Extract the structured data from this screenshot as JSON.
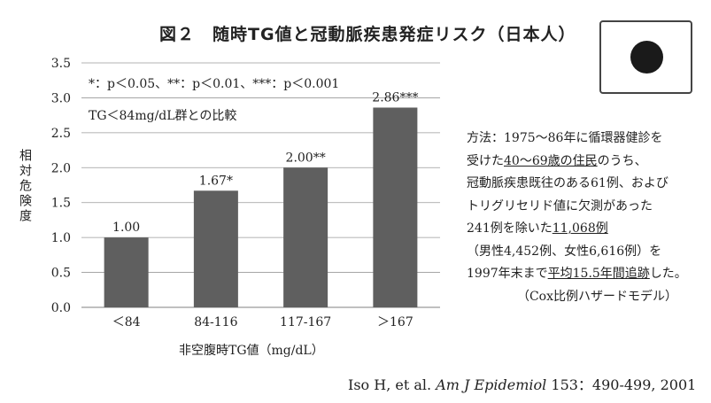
{
  "title": "図２　随時TG値と冠動脈疾患発症リスク（日本人）",
  "flag_icon": "japan-flag-icon",
  "chart_data": {
    "type": "bar",
    "categories": [
      "＜84",
      "84-116",
      "117-167",
      "＞167"
    ],
    "values": [
      1.0,
      1.67,
      2.0,
      2.86
    ],
    "data_labels": [
      "1.00",
      "1.67*",
      "2.00**",
      "2.86***"
    ],
    "ylabel": "相対危険度",
    "xlabel": "非空腹時TG値（mg/dL）",
    "ylim": [
      0,
      3.5
    ],
    "yticks": [
      "0.0",
      "0.5",
      "1.0",
      "1.5",
      "2.0",
      "2.5",
      "3.0",
      "3.5"
    ],
    "grid": true,
    "bar_color": "#5f5f5f",
    "annotations": [
      "*：p＜0.05、**：p＜0.01、***：p＜0.001",
      "TG＜84mg/dL群との比較"
    ]
  },
  "method": {
    "l1": "方法：1975〜86年に循環器健診を",
    "l2a": "受けた",
    "l2b": "40〜69歳の住民",
    "l2c": "のうち、",
    "l3": "冠動脈疾患既往のある61例、および",
    "l4": "トリグリセリド値に欠測があった",
    "l5a": "241例を除いた",
    "l5b": "11,068例",
    "l6": "（男性4,452例、女性6,616例）を",
    "l7a": "1997年末まで",
    "l7b": "平均15.5年間追跡",
    "l7c": "した。",
    "l8": "（Cox比例ハザードモデル）"
  },
  "citation": {
    "authors": "Iso H, et al. ",
    "journal": "Am J Epidemiol",
    "ref": " 153：490-499, 2001"
  }
}
